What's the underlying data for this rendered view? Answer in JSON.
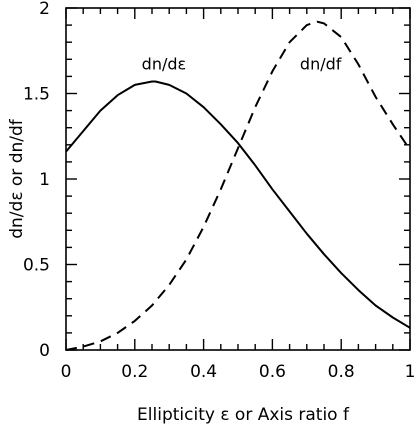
{
  "chart_data": {
    "type": "line",
    "title": "",
    "xlabel": "Ellipticity ε or Axis ratio f",
    "ylabel": "dn/dε or dn/df",
    "xlim": [
      0,
      1
    ],
    "ylim": [
      0,
      2
    ],
    "grid": false,
    "legend": "none",
    "x_ticks": [
      0,
      0.2,
      0.4,
      0.6,
      0.8,
      1
    ],
    "x_tick_labels": [
      "0",
      "0.2",
      "0.4",
      "0.6",
      "0.8",
      "1"
    ],
    "y_ticks": [
      0,
      0.5,
      1,
      1.5,
      2
    ],
    "y_tick_labels": [
      "0",
      "0.5",
      "1",
      "1.5",
      "2"
    ],
    "series": [
      {
        "name": "dn/dε",
        "style": "solid",
        "color": "#000000",
        "label_at": [
          0.22,
          1.64
        ],
        "x": [
          0,
          0.05,
          0.1,
          0.15,
          0.2,
          0.25,
          0.26,
          0.3,
          0.35,
          0.4,
          0.45,
          0.5,
          0.55,
          0.6,
          0.65,
          0.7,
          0.75,
          0.8,
          0.85,
          0.9,
          0.95,
          1.0
        ],
        "y": [
          1.16,
          1.28,
          1.4,
          1.49,
          1.55,
          1.57,
          1.57,
          1.55,
          1.5,
          1.42,
          1.32,
          1.21,
          1.08,
          0.94,
          0.81,
          0.68,
          0.56,
          0.45,
          0.35,
          0.26,
          0.19,
          0.13
        ]
      },
      {
        "name": "dn/df",
        "style": "dashed",
        "color": "#000000",
        "label_at": [
          0.68,
          1.64
        ],
        "x": [
          0,
          0.05,
          0.1,
          0.15,
          0.2,
          0.25,
          0.3,
          0.35,
          0.4,
          0.45,
          0.5,
          0.55,
          0.6,
          0.65,
          0.7,
          0.73,
          0.75,
          0.8,
          0.85,
          0.9,
          0.95,
          1.0
        ],
        "y": [
          0.0,
          0.02,
          0.05,
          0.1,
          0.17,
          0.26,
          0.38,
          0.53,
          0.72,
          0.94,
          1.18,
          1.42,
          1.63,
          1.8,
          1.9,
          1.92,
          1.91,
          1.83,
          1.67,
          1.48,
          1.32,
          1.17
        ]
      }
    ]
  }
}
